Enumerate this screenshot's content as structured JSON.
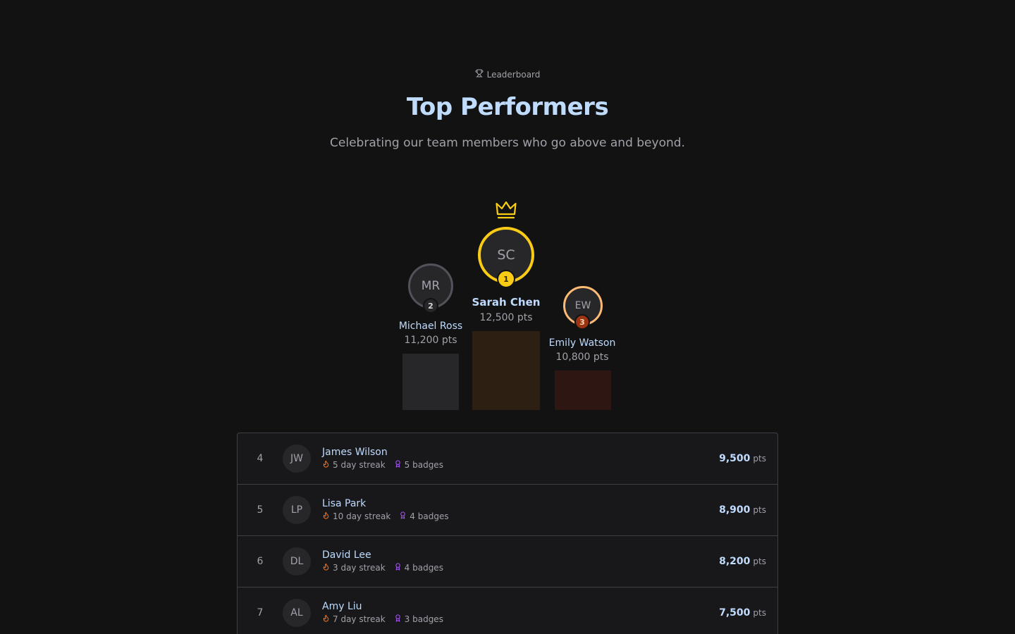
{
  "header": {
    "eyebrow": "Leaderboard",
    "title": "Top Performers",
    "subtitle": "Celebrating our team members who go above and beyond."
  },
  "podium": {
    "first": {
      "initials": "SC",
      "rank": "1",
      "name": "Sarah Chen",
      "points": "12,500 pts",
      "color": "#facc15",
      "block_color": "#2d2013"
    },
    "second": {
      "initials": "MR",
      "rank": "2",
      "name": "Michael Ross",
      "points": "11,200 pts",
      "color": "#52525b",
      "block_color": "#27272a"
    },
    "third": {
      "initials": "EW",
      "rank": "3",
      "name": "Emily Watson",
      "points": "10,800 pts",
      "color": "#fdba74",
      "block_color": "#2e1713"
    }
  },
  "list": [
    {
      "rank": "4",
      "initials": "JW",
      "name": "James Wilson",
      "streak": "5 day streak",
      "badges": "5 badges",
      "score": "9,500",
      "unit": "pts"
    },
    {
      "rank": "5",
      "initials": "LP",
      "name": "Lisa Park",
      "streak": "10 day streak",
      "badges": "4 badges",
      "score": "8,900",
      "unit": "pts"
    },
    {
      "rank": "6",
      "initials": "DL",
      "name": "David Lee",
      "streak": "3 day streak",
      "badges": "4 badges",
      "score": "8,200",
      "unit": "pts"
    },
    {
      "rank": "7",
      "initials": "AL",
      "name": "Amy Liu",
      "streak": "7 day streak",
      "badges": "3 badges",
      "score": "7,500",
      "unit": "pts"
    }
  ]
}
